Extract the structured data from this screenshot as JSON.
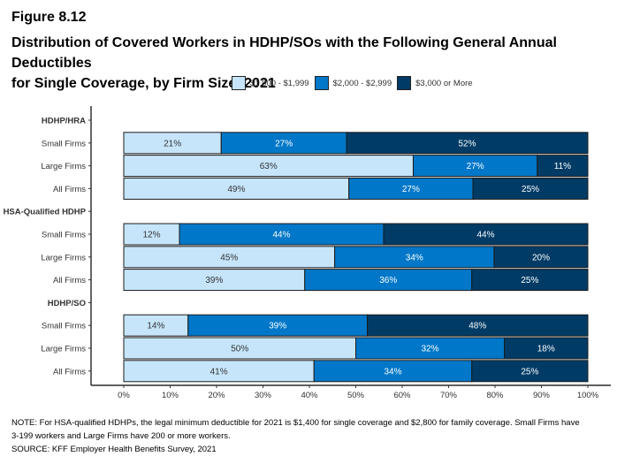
{
  "figure_label": "Figure 8.12",
  "title_line1": "Distribution of Covered Workers in HDHP/SOs with the Following General Annual Deductibles",
  "title_line2": "for Single Coverage, by Firm Size, 2021",
  "note_line1": "NOTE: For HSA-qualified HDHPs, the legal minimum deductible for 2021 is $1,400 for single coverage and $2,800 for family coverage. Small Firms have",
  "note_line2": "3-199 workers and Large Firms have 200 or more workers.",
  "source": "SOURCE: KFF Employer Health Benefits Survey, 2021",
  "chart_data": {
    "type": "bar",
    "orientation": "horizontal",
    "stacked": true,
    "title": "Distribution of Covered Workers in HDHP/SOs with the Following General Annual Deductibles for Single Coverage, by Firm Size, 2021",
    "xlabel": "",
    "ylabel": "",
    "xlim": [
      0,
      100
    ],
    "x_ticks": [
      "0%",
      "10%",
      "20%",
      "30%",
      "40%",
      "50%",
      "60%",
      "70%",
      "80%",
      "90%",
      "100%"
    ],
    "legend_position": "top",
    "series": [
      {
        "name": "$1,000 - $1,999",
        "color": "#C6E5FB",
        "label_color": "#333333"
      },
      {
        "name": "$2,000 - $2,999",
        "color": "#0077C8",
        "label_color": "#FFFFFF"
      },
      {
        "name": "$3,000 or More",
        "color": "#003B66",
        "label_color": "#FFFFFF"
      }
    ],
    "rows": [
      {
        "label": "HDHP/HRA",
        "header": true
      },
      {
        "label": "Small Firms",
        "values": [
          21,
          27,
          52
        ]
      },
      {
        "label": "Large Firms",
        "values": [
          63,
          27,
          11
        ]
      },
      {
        "label": "All Firms",
        "values": [
          49,
          27,
          25
        ]
      },
      {
        "label": "HSA-Qualified HDHP",
        "header": true
      },
      {
        "label": "Small Firms",
        "values": [
          12,
          44,
          44
        ]
      },
      {
        "label": "Large Firms",
        "values": [
          45,
          34,
          20
        ]
      },
      {
        "label": "All Firms",
        "values": [
          39,
          36,
          25
        ]
      },
      {
        "label": "HDHP/SO",
        "header": true
      },
      {
        "label": "Small Firms",
        "values": [
          14,
          39,
          48
        ]
      },
      {
        "label": "Large Firms",
        "values": [
          50,
          32,
          18
        ]
      },
      {
        "label": "All Firms",
        "values": [
          41,
          34,
          25
        ]
      }
    ]
  }
}
